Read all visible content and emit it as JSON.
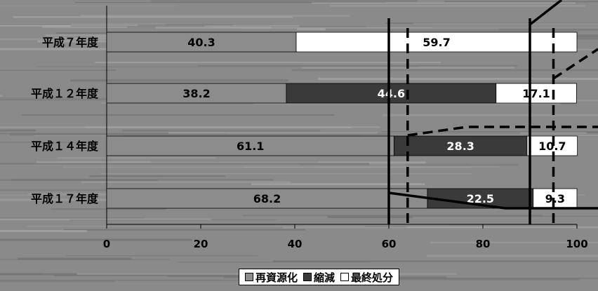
{
  "colors": {
    "background": "#8a8a8a",
    "background_streak_light": "#a7a7a7",
    "background_streak_dark": "#6f6f6f",
    "series": [
      "#8c8c8c",
      "#3a3a3a",
      "#ffffff"
    ],
    "label_dark": "#000000",
    "label_light": "#ffffff"
  },
  "chart_data": {
    "type": "bar",
    "orientation": "horizontal",
    "stacked": true,
    "categories": [
      "平成７年度",
      "平成１２年度",
      "平成１４年度",
      "平成１７年度"
    ],
    "series": [
      {
        "name": "再資源化",
        "values": [
          40.3,
          38.2,
          61.1,
          68.2
        ]
      },
      {
        "name": "縮減",
        "values": [
          0,
          44.6,
          28.3,
          22.5
        ]
      },
      {
        "name": "最終処分",
        "values": [
          59.7,
          17.1,
          10.7,
          9.3
        ]
      }
    ],
    "data_labels": [
      [
        "40.3",
        "",
        "59.7"
      ],
      [
        "38.2",
        "44.6",
        "17.1"
      ],
      [
        "61.1",
        "28.3",
        "10.7"
      ],
      [
        "68.2",
        "22.5",
        "9.3"
      ]
    ],
    "xlim": [
      0,
      100
    ],
    "xticks": [
      0,
      20,
      40,
      60,
      80,
      100
    ],
    "xtick_labels": [
      "0",
      "20",
      "40",
      "60",
      "80",
      "100"
    ],
    "reference_lines": {
      "solid": [
        60,
        90
      ],
      "dashed": [
        64,
        95
      ]
    },
    "legend_position": "bottom",
    "title": "",
    "xlabel": "",
    "ylabel": ""
  }
}
